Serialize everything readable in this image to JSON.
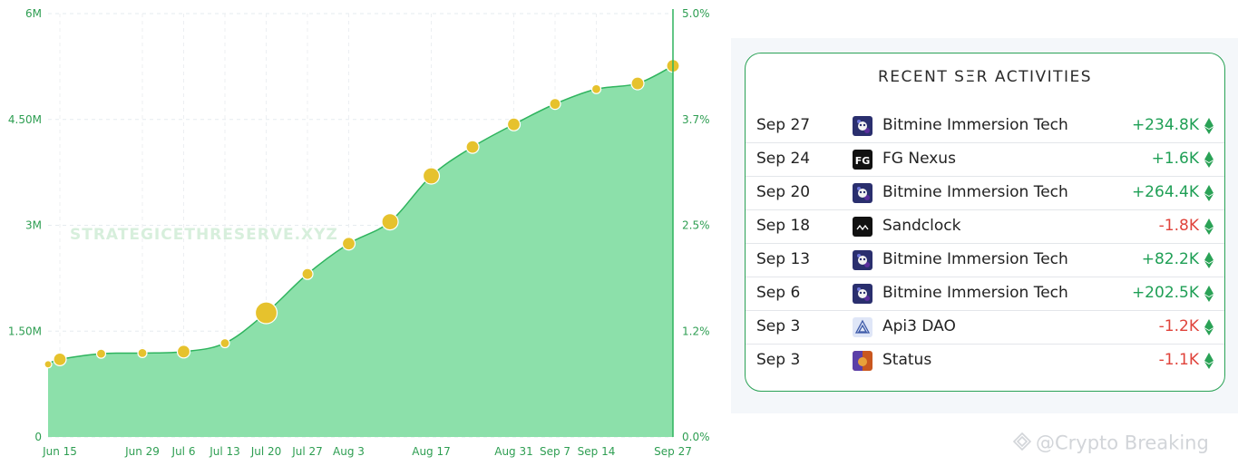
{
  "chart_data": {
    "type": "area",
    "watermark": "STRATEGICETHRESERVE.XYZ",
    "x_ticks": [
      "Jun 15",
      "Jun 29",
      "Jul 6",
      "Jul 13",
      "Jul 20",
      "Jul 27",
      "Aug 3",
      "Aug 17",
      "Aug 31",
      "Sep 7",
      "Sep 14",
      "Sep 27"
    ],
    "y_left_ticks": [
      "0",
      "1.50M",
      "3M",
      "4.50M",
      "6M"
    ],
    "y_right_ticks": [
      "0.0%",
      "1.2%",
      "2.5%",
      "3.7%",
      "5.0%"
    ],
    "y_left_range": [
      0,
      6000000
    ],
    "y_right_range": [
      0,
      5.0
    ],
    "grid": true,
    "area_color": "#8ce0aa",
    "line_color": "#2fb45e",
    "bubble_color": "#e6c22d",
    "series": [
      {
        "dates": [
          "Jun 13",
          "Jun 15",
          "Jun 22",
          "Jun 29",
          "Jul 6",
          "Jul 13",
          "Jul 20",
          "Jul 27",
          "Aug 3",
          "Aug 10",
          "Aug 17",
          "Aug 24",
          "Aug 31",
          "Sep 7",
          "Sep 14",
          "Sep 21",
          "Sep 27"
        ],
        "values": [
          1030000,
          1100000,
          1180000,
          1190000,
          1210000,
          1330000,
          1760000,
          2310000,
          2740000,
          3050000,
          3700000,
          4110000,
          4430000,
          4720000,
          4930000,
          5010000,
          5260000
        ]
      }
    ],
    "bubble_sizes": [
      4,
      7,
      5,
      5,
      7,
      5,
      12,
      6,
      7,
      9,
      9,
      7,
      7,
      6,
      5,
      7,
      7
    ]
  },
  "activities": {
    "title": "RECENT SΞR ACTIVITIES",
    "rows": [
      {
        "date": "Sep 27",
        "name": "Bitmine Immersion Tech",
        "amount": "+234.8K",
        "sign": "positive",
        "icon": "bitmine-icon"
      },
      {
        "date": "Sep 24",
        "name": "FG Nexus",
        "amount": "+1.6K",
        "sign": "positive",
        "icon": "fg-nexus-icon",
        "icon_text": "FG"
      },
      {
        "date": "Sep 20",
        "name": "Bitmine Immersion Tech",
        "amount": "+264.4K",
        "sign": "positive",
        "icon": "bitmine-icon"
      },
      {
        "date": "Sep 18",
        "name": "Sandclock",
        "amount": "-1.8K",
        "sign": "negative",
        "icon": "sandclock-icon"
      },
      {
        "date": "Sep 13",
        "name": "Bitmine Immersion Tech",
        "amount": "+82.2K",
        "sign": "positive",
        "icon": "bitmine-icon"
      },
      {
        "date": "Sep 6",
        "name": "Bitmine Immersion Tech",
        "amount": "+202.5K",
        "sign": "positive",
        "icon": "bitmine-icon"
      },
      {
        "date": "Sep 3",
        "name": "Api3 DAO",
        "amount": "-1.2K",
        "sign": "negative",
        "icon": "api3-icon"
      },
      {
        "date": "Sep 3",
        "name": "Status",
        "amount": "-1.1K",
        "sign": "negative",
        "icon": "status-icon"
      }
    ],
    "positive_color": "#1f9f55",
    "negative_color": "#e0433b",
    "eth_icon": "ethereum-icon"
  },
  "footer": {
    "watermark": "@Crypto Breaking"
  }
}
